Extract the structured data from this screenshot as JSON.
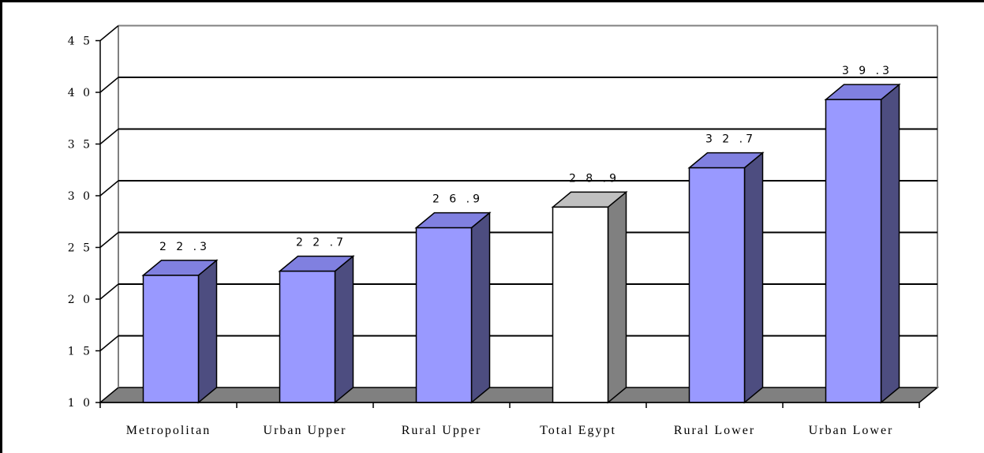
{
  "chart_data": {
    "type": "bar",
    "style": "3d-column",
    "categories": [
      "Metropolitan",
      "Urban Upper",
      "Rural Upper",
      "Total Egypt",
      "Rural Lower",
      "Urban Lower"
    ],
    "values": [
      22.3,
      22.7,
      26.9,
      28.9,
      32.7,
      39.3
    ],
    "value_labels": [
      "2 2 .3",
      "2 2 .7",
      "2 6 .9",
      "2 8 .9",
      "3 2 .7",
      "3 9 .3"
    ],
    "y_tick_labels": [
      "1 0",
      "1 5",
      "2 0",
      "2 5",
      "3 0",
      "3 5",
      "4 0",
      "4 5"
    ],
    "y_ticks": [
      10,
      15,
      20,
      25,
      30,
      35,
      40,
      45
    ],
    "ylim": [
      10,
      45
    ],
    "grid": true,
    "title": "",
    "xlabel": "",
    "ylabel": "",
    "colors": {
      "bar_front": "#9999ff",
      "bar_side": "#4d4d80",
      "bar_top": "#8080e0",
      "highlight_front": "#ffffff",
      "highlight_side": "#808080",
      "highlight_top": "#c0c0c0",
      "floor": "#808080",
      "wall_border": "#808080",
      "gridline": "#000000"
    },
    "highlight_category": "Total Egypt"
  }
}
